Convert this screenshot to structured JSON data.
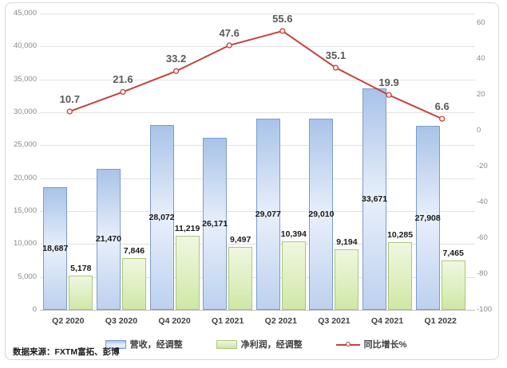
{
  "source_note": "数据来源：FXTM富拓、彭博",
  "chart_data": {
    "type": "bar",
    "subtype": "combo-bar-line",
    "categories": [
      "Q2 2020",
      "Q3 2020",
      "Q4 2020",
      "Q1 2021",
      "Q2 2021",
      "Q3 2021",
      "Q4 2021",
      "Q1 2022"
    ],
    "series": [
      {
        "name": "营收，经调整",
        "type": "bar",
        "axis": "left",
        "values": [
          18687,
          21470,
          28072,
          26171,
          29077,
          29010,
          33671,
          27908
        ],
        "fill_top": "#a9c3e8",
        "fill_mid": "#e8effb",
        "fill_bottom": "#bdd1ee",
        "border": "#7b9cc9",
        "label_position": "inside-center"
      },
      {
        "name": "净利润，经调整",
        "type": "bar",
        "axis": "left",
        "values": [
          5178,
          7846,
          11219,
          9497,
          10394,
          9194,
          10285,
          7465
        ],
        "fill_top": "#eff7e0",
        "fill_mid": "#e0f0c4",
        "fill_bottom": "#cfe7a6",
        "border": "#aec77f",
        "label_position": "outside-top"
      },
      {
        "name": "同比增长%",
        "type": "line",
        "axis": "right",
        "values": [
          10.7,
          21.6,
          33.2,
          47.6,
          55.6,
          35.1,
          19.9,
          6.6
        ],
        "color": "#c5413d",
        "marker_fill": "#fdf0ef",
        "label_color": "#595959",
        "label_position": "above"
      }
    ],
    "left_axis": {
      "min": 0,
      "max": 45000,
      "step": 5000
    },
    "right_axis": {
      "min": -100,
      "max": 60,
      "step": 20
    },
    "legend_position": "bottom",
    "grid": true,
    "title": ""
  },
  "legend": {
    "items": [
      {
        "label": "营收，经调整"
      },
      {
        "label": "净利润，经调整"
      },
      {
        "label": "同比增长%"
      }
    ]
  }
}
